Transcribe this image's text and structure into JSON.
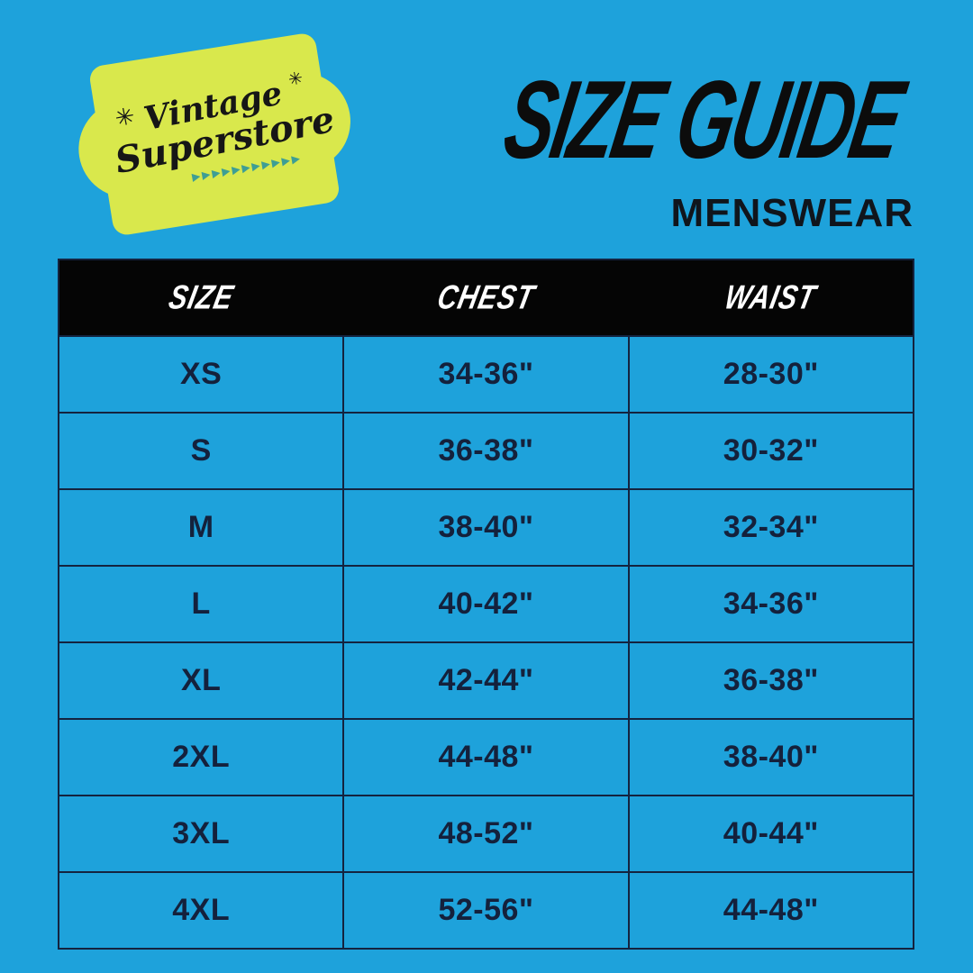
{
  "canvas": {
    "background": "#1EA2DB"
  },
  "logo": {
    "line1": "Vintage",
    "line2": "Superstore",
    "sparkle": "✳",
    "arrows": "▶▶▶▶▶▶▶▶▶▶▶",
    "badge_color": "#D9E84C",
    "text_color": "#161616",
    "arrow_color": "#3E9E94"
  },
  "titles": {
    "main": "SIZE GUIDE",
    "sub": "MENSWEAR"
  },
  "chart_data": {
    "type": "table",
    "title": "SIZE GUIDE",
    "subtitle": "MENSWEAR",
    "columns": [
      "SIZE",
      "CHEST",
      "WAIST"
    ],
    "rows": [
      [
        "XS",
        "34-36\"",
        "28-30\""
      ],
      [
        "S",
        "36-38\"",
        "30-32\""
      ],
      [
        "M",
        "38-40\"",
        "32-34\""
      ],
      [
        "L",
        "40-42\"",
        "34-36\""
      ],
      [
        "XL",
        "42-44\"",
        "36-38\""
      ],
      [
        "2XL",
        "44-48\"",
        "38-40\""
      ],
      [
        "3XL",
        "48-52\"",
        "40-44\""
      ],
      [
        "4XL",
        "52-56\"",
        "44-48\""
      ]
    ],
    "styles": {
      "header_bg": "#050505",
      "header_text_color": "#FFFFFF",
      "cell_bg": "#1EA2DB",
      "cell_text_color": "#14213C",
      "border_color": "#14233F"
    }
  }
}
